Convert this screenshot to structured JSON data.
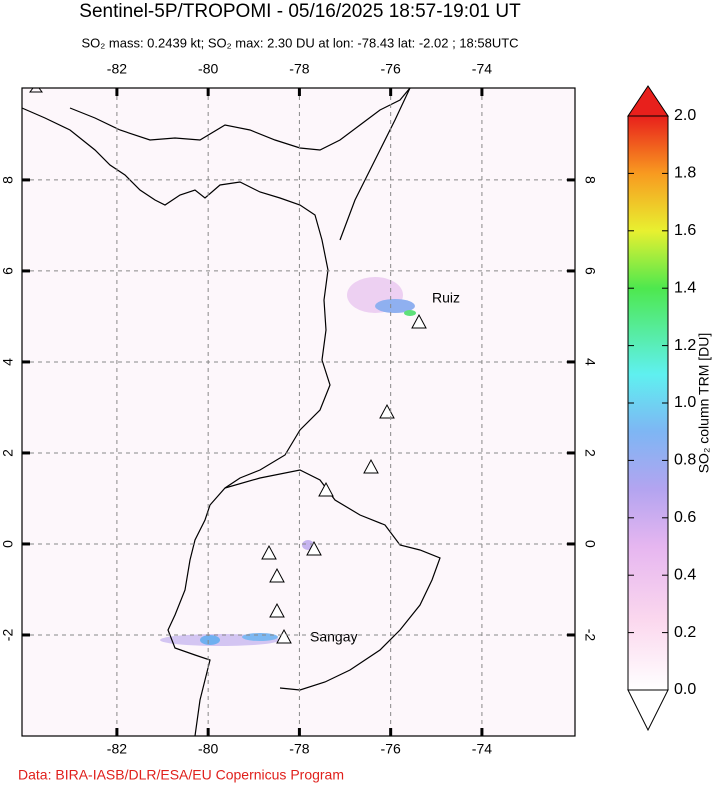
{
  "header": {
    "title": "Sentinel-5P/TROPOMI - 05/16/2025 18:57-19:01 UT",
    "subtitle": "SO₂ mass: 0.2439 kt; SO₂ max: 2.30 DU at lon: -78.43 lat: -2.02 ; 18:58UTC"
  },
  "map": {
    "lon_range": [
      -84.08,
      -71.96
    ],
    "lat_range": [
      -4.22,
      10.02
    ],
    "lon_ticks": [
      -82,
      -80,
      -78,
      -76,
      -74
    ],
    "lat_ticks": [
      8,
      6,
      4,
      2,
      0,
      -2
    ],
    "grid": true,
    "labels": [
      "Ruiz",
      "Sangay"
    ]
  },
  "colorbar": {
    "label": "SO₂ column TRM [DU]",
    "range": [
      0,
      2
    ],
    "ticks": [
      {
        "value": 0,
        "label": "0.0"
      },
      {
        "value": 0.2,
        "label": "0.2"
      },
      {
        "value": 0.4,
        "label": "0.4"
      },
      {
        "value": 0.6,
        "label": "0.6"
      },
      {
        "value": 0.8,
        "label": "0.8"
      },
      {
        "value": 1,
        "label": "1.0"
      },
      {
        "value": 1.2,
        "label": "1.2"
      },
      {
        "value": 1.4,
        "label": "1.4"
      },
      {
        "value": 1.6,
        "label": "1.6"
      },
      {
        "value": 1.8,
        "label": "1.8"
      },
      {
        "value": 2,
        "label": "2.0"
      }
    ]
  },
  "credit": "Data: BIRA-IASB/DLR/ESA/EU Copernicus Program"
}
